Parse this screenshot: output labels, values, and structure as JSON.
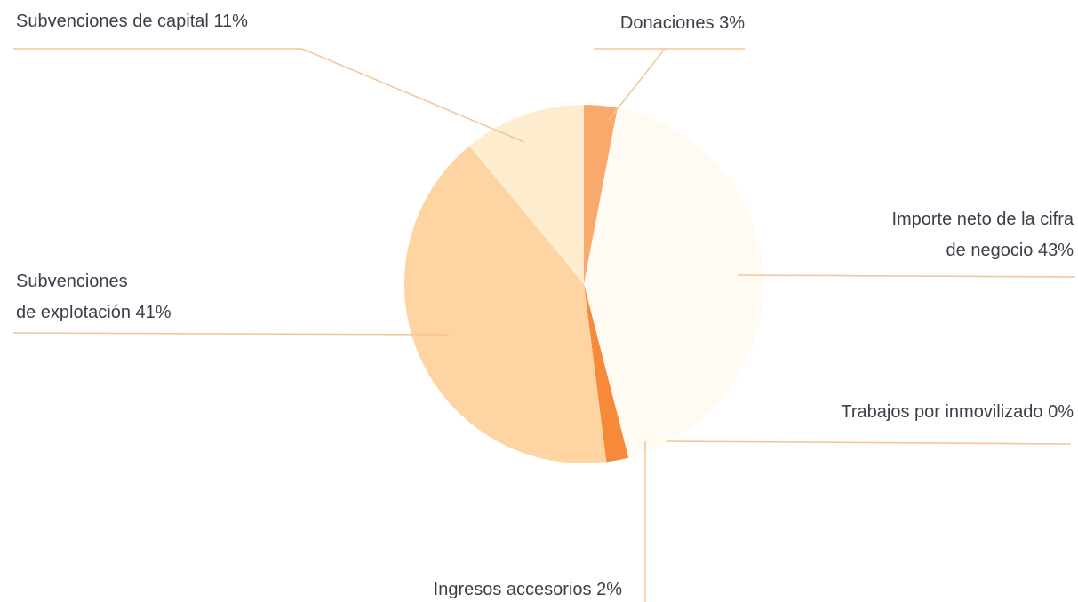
{
  "chart_data": {
    "type": "pie",
    "categories": [
      "Donaciones",
      "Importe neto de la cifra\nde negocio",
      "Trabajos por inmovilizado",
      "Ingresos accesorios",
      "Subvenciones\nde explotación",
      "Subvenciones de capital"
    ],
    "values": [
      3,
      43,
      0,
      2,
      41,
      11
    ],
    "value_labels": [
      "3%",
      "43%",
      "0%",
      "2%",
      "41%",
      "11%"
    ],
    "colors": [
      "#f9a96c",
      "#fffaf2",
      "#f58a3c",
      "#f7893a",
      "#fdd4a2",
      "#feedcf"
    ]
  }
}
